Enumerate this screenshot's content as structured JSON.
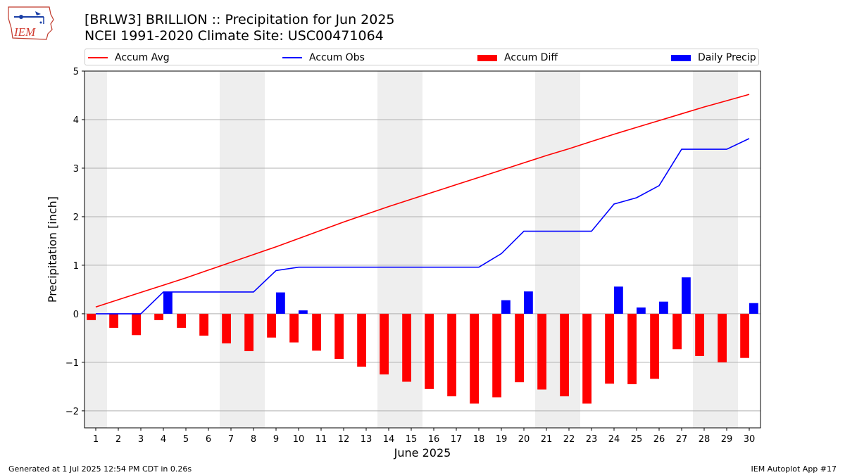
{
  "title_line1": "[BRLW3] BRILLION :: Precipitation for Jun 2025",
  "title_line2": "NCEI 1991-2020 Climate Site: USC00471064",
  "logo_text": "IEM",
  "footer_left": "Generated at 1 Jul 2025 12:54 PM CDT in 0.26s",
  "footer_right": "IEM Autoplot App #17",
  "legend": [
    {
      "label": "Accum Avg",
      "kind": "line",
      "color": "#ff0000"
    },
    {
      "label": "Accum Obs",
      "kind": "line",
      "color": "#0000ff"
    },
    {
      "label": "Accum Diff",
      "kind": "patch",
      "color": "#ff0000"
    },
    {
      "label": "Daily Precip",
      "kind": "patch",
      "color": "#0000ff"
    }
  ],
  "chart_data": {
    "type": "bar",
    "xlabel": "June 2025",
    "ylabel": "Precipitation [inch]",
    "ylim": [
      -2.35,
      5.0
    ],
    "yticks": [
      -2,
      -1,
      0,
      1,
      2,
      3,
      4,
      5
    ],
    "ytick_labels": [
      "−2",
      "−1",
      "0",
      "1",
      "2",
      "3",
      "4",
      "5"
    ],
    "grid": true,
    "legend_position": "top",
    "x": [
      1,
      2,
      3,
      4,
      5,
      6,
      7,
      8,
      9,
      10,
      11,
      12,
      13,
      14,
      15,
      16,
      17,
      18,
      19,
      20,
      21,
      22,
      23,
      24,
      25,
      26,
      27,
      28,
      29,
      30
    ],
    "weekend_days": [
      1,
      7,
      8,
      14,
      15,
      21,
      22,
      28,
      29
    ],
    "series": [
      {
        "name": "Accum Avg",
        "kind": "line",
        "color": "#ff0000",
        "values": [
          0.14,
          0.29,
          0.44,
          0.59,
          0.74,
          0.9,
          1.06,
          1.22,
          1.38,
          1.55,
          1.72,
          1.89,
          2.05,
          2.21,
          2.36,
          2.51,
          2.66,
          2.81,
          2.96,
          3.11,
          3.26,
          3.4,
          3.55,
          3.7,
          3.84,
          3.98,
          4.12,
          4.26,
          4.39,
          4.52
        ]
      },
      {
        "name": "Accum Obs",
        "kind": "line",
        "color": "#0000ff",
        "values": [
          0.0,
          0.0,
          0.0,
          0.45,
          0.45,
          0.45,
          0.45,
          0.45,
          0.89,
          0.96,
          0.96,
          0.96,
          0.96,
          0.96,
          0.96,
          0.96,
          0.96,
          0.96,
          1.24,
          1.7,
          1.7,
          1.7,
          1.7,
          2.26,
          2.39,
          2.64,
          3.39,
          3.39,
          3.39,
          3.61
        ]
      },
      {
        "name": "Accum Diff",
        "kind": "bar",
        "color": "#ff0000",
        "values": [
          -0.13,
          -0.29,
          -0.44,
          -0.13,
          -0.29,
          -0.45,
          -0.61,
          -0.77,
          -0.49,
          -0.59,
          -0.76,
          -0.93,
          -1.09,
          -1.25,
          -1.4,
          -1.55,
          -1.7,
          -1.85,
          -1.72,
          -1.41,
          -1.56,
          -1.7,
          -1.85,
          -1.44,
          -1.45,
          -1.34,
          -0.73,
          -0.87,
          -1.0,
          -0.91
        ]
      },
      {
        "name": "Daily Precip",
        "kind": "bar",
        "color": "#0000ff",
        "values": [
          0.0,
          0.0,
          0.0,
          0.45,
          0.0,
          0.0,
          0.0,
          0.0,
          0.44,
          0.07,
          0.0,
          0.0,
          0.0,
          0.0,
          0.0,
          0.0,
          0.0,
          0.0,
          0.28,
          0.46,
          0.0,
          0.0,
          0.0,
          0.56,
          0.13,
          0.25,
          0.75,
          0.0,
          0.0,
          0.22
        ]
      }
    ]
  }
}
